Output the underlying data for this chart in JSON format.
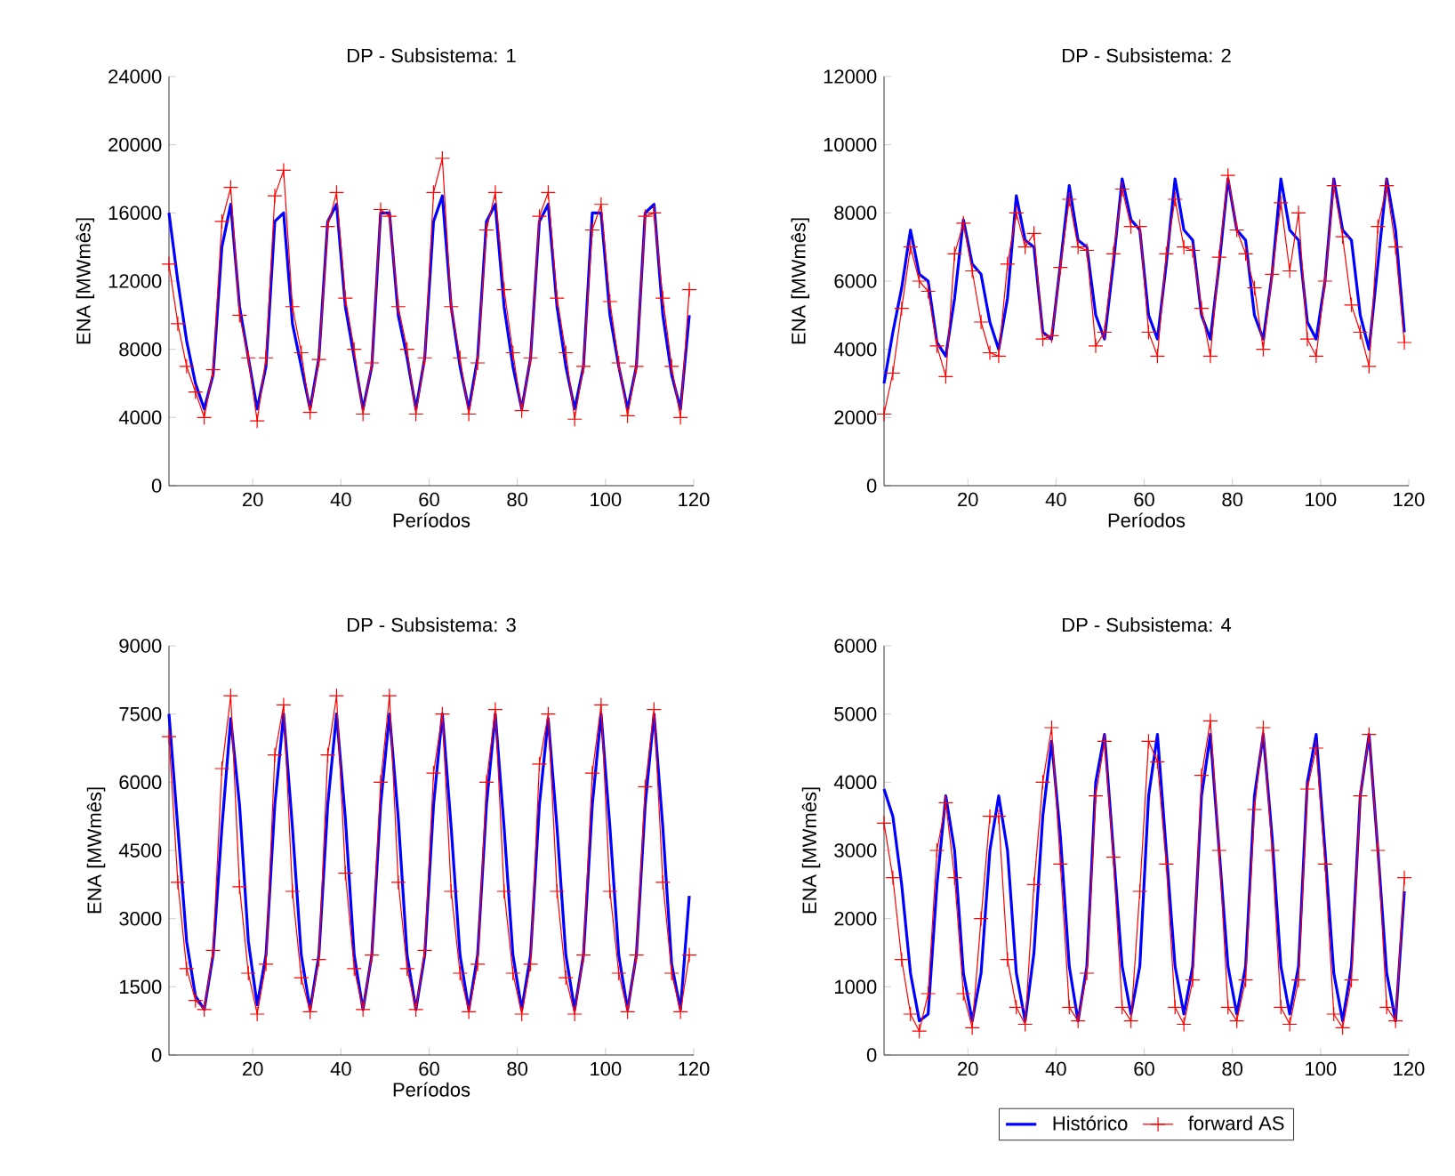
{
  "chart_data": [
    {
      "type": "line",
      "title": "DP - Subsistema: 1",
      "xlabel": "Períodos",
      "ylabel": "ENA [MWmês]",
      "xlim": [
        1,
        120
      ],
      "xticks": [
        20,
        40,
        60,
        80,
        100,
        120
      ],
      "ylim": [
        0,
        24000
      ],
      "yticks": [
        0,
        4000,
        8000,
        12000,
        16000,
        20000,
        24000
      ],
      "line_style": "solid",
      "x": [
        1,
        3,
        5,
        7,
        9,
        11,
        13,
        15,
        17,
        19,
        21,
        23,
        25,
        27,
        29,
        31,
        33,
        35,
        37,
        39,
        41,
        43,
        45,
        47,
        49,
        51,
        53,
        55,
        57,
        59,
        61,
        63,
        65,
        67,
        69,
        71,
        73,
        75,
        77,
        79,
        81,
        83,
        85,
        87,
        89,
        91,
        93,
        95,
        97,
        99,
        101,
        103,
        105,
        107,
        109,
        111,
        113,
        115,
        117,
        119
      ],
      "series": [
        {
          "color": "#0000ff",
          "marker": "none",
          "values": [
            16000,
            12000,
            8500,
            6000,
            4500,
            6500,
            14000,
            16500,
            10500,
            7500,
            4500,
            7000,
            15500,
            16000,
            9500,
            7000,
            4500,
            7500,
            15500,
            16500,
            10500,
            7500,
            4500,
            7000,
            16000,
            16000,
            10000,
            7500,
            4500,
            7500,
            15500,
            17000,
            10500,
            7000,
            4500,
            7500,
            15500,
            16500,
            10500,
            7000,
            4500,
            7500,
            15500,
            16500,
            10500,
            7000,
            4500,
            7000,
            16000,
            16000,
            10000,
            7000,
            4500,
            7000,
            16000,
            16500,
            10000,
            6500,
            4500,
            10000
          ]
        },
        {
          "color": "#ff0000",
          "marker": "cross",
          "values": [
            13000,
            9500,
            7000,
            5500,
            4000,
            6800,
            15500,
            17500,
            10000,
            7500,
            3800,
            7500,
            17000,
            18500,
            10500,
            7800,
            4300,
            7400,
            15200,
            17200,
            11000,
            8000,
            4200,
            7200,
            16200,
            15800,
            10500,
            8000,
            4200,
            7500,
            17200,
            19200,
            10500,
            7500,
            4200,
            7200,
            15000,
            17200,
            11500,
            7800,
            4400,
            7500,
            15800,
            17200,
            11000,
            7800,
            3900,
            7000,
            15000,
            16500,
            10800,
            7200,
            4100,
            7000,
            15800,
            16000,
            11000,
            7000,
            4000,
            11500
          ]
        }
      ]
    },
    {
      "type": "line",
      "title": "DP - Subsistema: 2",
      "xlabel": "Períodos",
      "ylabel": "ENA [MWmês]",
      "xlim": [
        1,
        120
      ],
      "xticks": [
        20,
        40,
        60,
        80,
        100,
        120
      ],
      "ylim": [
        0,
        12000
      ],
      "yticks": [
        0,
        2000,
        4000,
        6000,
        8000,
        10000,
        12000
      ],
      "line_style": "solid",
      "x": [
        1,
        3,
        5,
        7,
        9,
        11,
        13,
        15,
        17,
        19,
        21,
        23,
        25,
        27,
        29,
        31,
        33,
        35,
        37,
        39,
        41,
        43,
        45,
        47,
        49,
        51,
        53,
        55,
        57,
        59,
        61,
        63,
        65,
        67,
        69,
        71,
        73,
        75,
        77,
        79,
        81,
        83,
        85,
        87,
        89,
        91,
        93,
        95,
        97,
        99,
        101,
        103,
        105,
        107,
        109,
        111,
        113,
        115,
        117,
        119
      ],
      "series": [
        {
          "color": "#0000ff",
          "marker": "none",
          "values": [
            3000,
            4500,
            5800,
            7500,
            6200,
            6000,
            4200,
            3800,
            5500,
            7800,
            6500,
            6200,
            4800,
            4000,
            5500,
            8500,
            7200,
            7000,
            4500,
            4300,
            6500,
            8800,
            7200,
            7000,
            5000,
            4300,
            6500,
            9000,
            7800,
            7500,
            5000,
            4300,
            6500,
            9000,
            7500,
            7200,
            5000,
            4300,
            6500,
            9000,
            7500,
            7200,
            5000,
            4300,
            6200,
            9000,
            7500,
            7200,
            4800,
            4300,
            6000,
            9000,
            7500,
            7200,
            5000,
            4000,
            6500,
            9000,
            7500,
            4500
          ]
        },
        {
          "color": "#ff0000",
          "marker": "cross",
          "values": [
            2100,
            3300,
            5200,
            7000,
            6000,
            5700,
            4100,
            3200,
            6800,
            7700,
            6300,
            4800,
            3900,
            3800,
            6500,
            8000,
            7000,
            7400,
            4300,
            4400,
            6400,
            8400,
            7000,
            6900,
            4100,
            4500,
            6800,
            8700,
            7600,
            7600,
            4500,
            3800,
            6800,
            8400,
            7000,
            6900,
            5200,
            3800,
            6700,
            9100,
            7500,
            6800,
            5800,
            4000,
            6200,
            8300,
            6300,
            8000,
            4300,
            3800,
            6000,
            8800,
            7300,
            5300,
            4500,
            3500,
            7600,
            8800,
            7000,
            4200
          ]
        }
      ]
    },
    {
      "type": "line",
      "title": "DP - Subsistema: 3",
      "xlabel": "Períodos",
      "ylabel": "ENA [MWmês]",
      "xlim": [
        1,
        120
      ],
      "xticks": [
        20,
        40,
        60,
        80,
        100,
        120
      ],
      "ylim": [
        0,
        9000
      ],
      "yticks": [
        0,
        1500,
        3000,
        4500,
        6000,
        7500,
        9000
      ],
      "line_style": "solid",
      "x": [
        1,
        3,
        5,
        7,
        9,
        11,
        13,
        15,
        17,
        19,
        21,
        23,
        25,
        27,
        29,
        31,
        33,
        35,
        37,
        39,
        41,
        43,
        45,
        47,
        49,
        51,
        53,
        55,
        57,
        59,
        61,
        63,
        65,
        67,
        69,
        71,
        73,
        75,
        77,
        79,
        81,
        83,
        85,
        87,
        89,
        91,
        93,
        95,
        97,
        99,
        101,
        103,
        105,
        107,
        109,
        111,
        113,
        115,
        117,
        119
      ],
      "series": [
        {
          "color": "#0000ff",
          "marker": "none",
          "values": [
            7500,
            5000,
            2500,
            1300,
            1000,
            2200,
            5000,
            7400,
            5500,
            2500,
            1100,
            2200,
            5500,
            7500,
            5000,
            2200,
            1000,
            2200,
            5500,
            7500,
            5200,
            2200,
            1000,
            2200,
            5500,
            7500,
            5200,
            2200,
            1000,
            2200,
            5500,
            7500,
            5000,
            2200,
            1000,
            2200,
            5500,
            7500,
            5000,
            2200,
            1000,
            2200,
            5500,
            7400,
            5000,
            2200,
            1000,
            2200,
            5500,
            7500,
            5000,
            2200,
            1000,
            2200,
            5500,
            7500,
            5000,
            2000,
            1000,
            3500
          ]
        },
        {
          "color": "#ff0000",
          "marker": "cross",
          "values": [
            7000,
            3800,
            1900,
            1200,
            1000,
            2300,
            6300,
            7900,
            3700,
            1800,
            900,
            2000,
            6600,
            7700,
            3600,
            1700,
            950,
            2100,
            6600,
            7900,
            4000,
            1900,
            1000,
            2200,
            6000,
            7900,
            3800,
            1900,
            1000,
            2300,
            6200,
            7500,
            3600,
            1800,
            950,
            2000,
            6000,
            7600,
            3600,
            1800,
            900,
            2000,
            6400,
            7500,
            3600,
            1700,
            900,
            2200,
            6200,
            7700,
            3600,
            1800,
            950,
            2200,
            5900,
            7600,
            3800,
            1800,
            950,
            2200
          ]
        }
      ]
    },
    {
      "type": "line",
      "title": "DP - Subsistema: 4",
      "ylabel": "ENA [MWmês]",
      "xlim": [
        1,
        120
      ],
      "xticks": [
        20,
        40,
        60,
        80,
        100,
        120
      ],
      "ylim": [
        0,
        6000
      ],
      "yticks": [
        0,
        1000,
        2000,
        3000,
        4000,
        5000,
        6000
      ],
      "line_style": "solid",
      "legend": "bottom",
      "x": [
        1,
        3,
        5,
        7,
        9,
        11,
        13,
        15,
        17,
        19,
        21,
        23,
        25,
        27,
        29,
        31,
        33,
        35,
        37,
        39,
        41,
        43,
        45,
        47,
        49,
        51,
        53,
        55,
        57,
        59,
        61,
        63,
        65,
        67,
        69,
        71,
        73,
        75,
        77,
        79,
        81,
        83,
        85,
        87,
        89,
        91,
        93,
        95,
        97,
        99,
        101,
        103,
        105,
        107,
        109,
        111,
        113,
        115,
        117,
        119
      ],
      "series": [
        {
          "name": "Histórico",
          "color": "#0000ff",
          "marker": "none",
          "values": [
            3900,
            3500,
            2500,
            1200,
            500,
            600,
            2500,
            3800,
            3000,
            1200,
            500,
            1200,
            3000,
            3800,
            3000,
            1200,
            500,
            1500,
            3500,
            4600,
            3200,
            1300,
            500,
            1300,
            4000,
            4700,
            3000,
            1300,
            600,
            1300,
            3800,
            4700,
            3000,
            1300,
            600,
            1300,
            3800,
            4700,
            3000,
            1300,
            600,
            1300,
            3800,
            4700,
            3200,
            1300,
            600,
            1300,
            4000,
            4700,
            3000,
            1200,
            500,
            1300,
            3800,
            4700,
            3000,
            1200,
            500,
            2400
          ]
        },
        {
          "name": "forward AS",
          "color": "#ff0000",
          "marker": "cross",
          "values": [
            3400,
            2600,
            1400,
            600,
            350,
            900,
            3000,
            3700,
            2600,
            900,
            400,
            2000,
            3500,
            3500,
            1400,
            700,
            450,
            2500,
            4000,
            4800,
            2800,
            700,
            500,
            1200,
            3800,
            4600,
            2900,
            700,
            500,
            2400,
            4600,
            4300,
            2800,
            700,
            450,
            1100,
            4100,
            4900,
            3000,
            700,
            500,
            1100,
            3600,
            4800,
            3000,
            700,
            450,
            1100,
            3900,
            4500,
            2800,
            600,
            400,
            1100,
            3800,
            4700,
            3000,
            700,
            500,
            2600
          ]
        }
      ]
    }
  ]
}
